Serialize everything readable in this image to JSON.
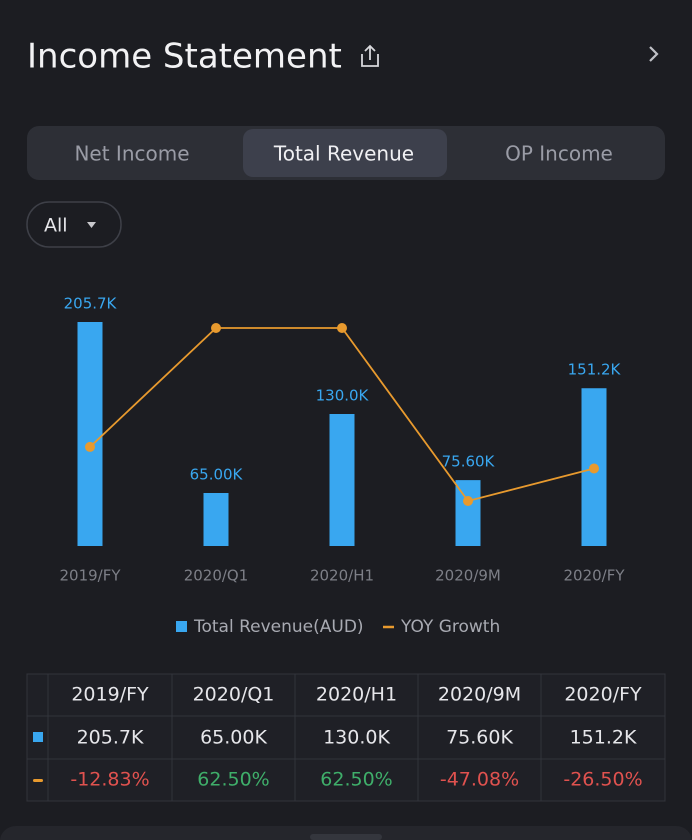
{
  "header": {
    "title": "Income Statement"
  },
  "tabs": {
    "items": [
      "Net Income",
      "Total Revenue",
      "OP Income"
    ],
    "selected": 1
  },
  "filter": {
    "label": "All"
  },
  "chart_data": {
    "type": "bar_line",
    "categories": [
      "2019/FY",
      "2020/Q1",
      "2020/H1",
      "2020/9M",
      "2020/FY"
    ],
    "series": [
      {
        "name": "Total Revenue(AUD)",
        "color": "#39a7f0",
        "type": "bar",
        "values": [
          205700,
          65000,
          130000,
          75600,
          151200
        ],
        "value_labels": [
          "205.7K",
          "65.00K",
          "130.0K",
          "75.60K",
          "151.2K"
        ]
      },
      {
        "name": "YOY Growth",
        "color": "#e89a2e",
        "type": "line",
        "values": [
          -12.83,
          62.5,
          62.5,
          -47.08,
          -26.5
        ],
        "value_labels": [
          "-12.83%",
          "62.50%",
          "62.50%",
          "-47.08%",
          "-26.50%"
        ]
      }
    ],
    "positive_color": "#3fae6a",
    "negative_color": "#e0524f"
  }
}
